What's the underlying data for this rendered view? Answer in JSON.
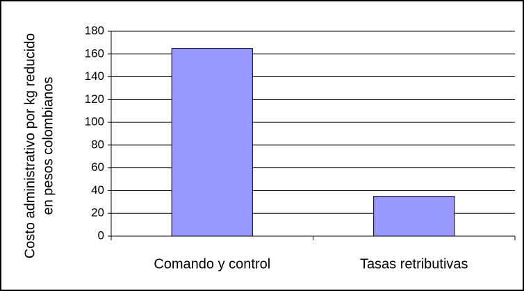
{
  "chart_data": {
    "type": "bar",
    "y_label": [
      "Costo administrativo por kg reducido",
      "en pesos colombianos"
    ],
    "categories": [
      "Comando y control",
      "Tasas retributivas"
    ],
    "values": [
      165,
      35
    ],
    "color": "#9999ff",
    "ylim": [
      0,
      180
    ],
    "yticks": [
      0,
      20,
      40,
      60,
      80,
      100,
      120,
      140,
      160,
      180
    ],
    "grid": true
  }
}
